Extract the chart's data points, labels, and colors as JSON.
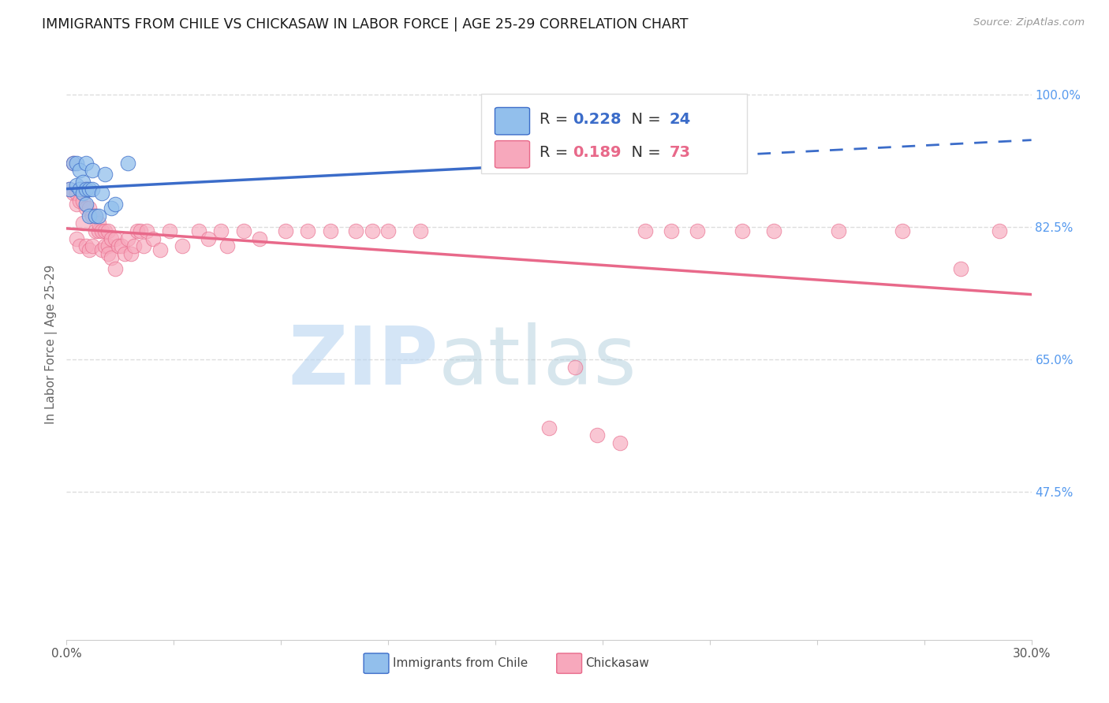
{
  "title": "IMMIGRANTS FROM CHILE VS CHICKASAW IN LABOR FORCE | AGE 25-29 CORRELATION CHART",
  "source": "Source: ZipAtlas.com",
  "ylabel": "In Labor Force | Age 25-29",
  "xlim": [
    0.0,
    0.3
  ],
  "ylim": [
    0.28,
    1.06
  ],
  "yticks_right": [
    1.0,
    0.825,
    0.65,
    0.475
  ],
  "ytick_right_labels": [
    "100.0%",
    "82.5%",
    "65.0%",
    "47.5%"
  ],
  "legend_r_blue": "0.228",
  "legend_n_blue": "24",
  "legend_r_pink": "0.189",
  "legend_n_pink": "73",
  "blue_color": "#92BFEC",
  "pink_color": "#F7A8BC",
  "line_blue_color": "#3B6CC9",
  "line_pink_color": "#E8698A",
  "background_color": "#FFFFFF",
  "grid_color": "#DDDDDD",
  "blue_x": [
    0.001,
    0.002,
    0.003,
    0.003,
    0.004,
    0.004,
    0.005,
    0.005,
    0.006,
    0.006,
    0.006,
    0.007,
    0.007,
    0.008,
    0.008,
    0.009,
    0.01,
    0.011,
    0.012,
    0.014,
    0.015,
    0.019,
    0.15,
    0.153
  ],
  "blue_y": [
    0.875,
    0.91,
    0.91,
    0.88,
    0.9,
    0.875,
    0.885,
    0.87,
    0.91,
    0.875,
    0.855,
    0.875,
    0.84,
    0.875,
    0.9,
    0.84,
    0.84,
    0.87,
    0.895,
    0.85,
    0.855,
    0.91,
    0.91,
    0.91
  ],
  "pink_x": [
    0.001,
    0.002,
    0.002,
    0.003,
    0.003,
    0.003,
    0.004,
    0.004,
    0.005,
    0.005,
    0.005,
    0.006,
    0.006,
    0.006,
    0.007,
    0.007,
    0.008,
    0.008,
    0.009,
    0.009,
    0.01,
    0.01,
    0.011,
    0.011,
    0.012,
    0.012,
    0.013,
    0.013,
    0.013,
    0.014,
    0.014,
    0.015,
    0.015,
    0.016,
    0.017,
    0.018,
    0.019,
    0.02,
    0.021,
    0.022,
    0.023,
    0.024,
    0.025,
    0.027,
    0.029,
    0.032,
    0.036,
    0.041,
    0.044,
    0.048,
    0.05,
    0.055,
    0.06,
    0.068,
    0.075,
    0.082,
    0.09,
    0.095,
    0.1,
    0.11,
    0.15,
    0.158,
    0.165,
    0.172,
    0.18,
    0.188,
    0.196,
    0.21,
    0.22,
    0.24,
    0.26,
    0.278,
    0.29
  ],
  "pink_y": [
    0.875,
    0.91,
    0.87,
    0.855,
    0.81,
    0.87,
    0.86,
    0.8,
    0.86,
    0.83,
    0.875,
    0.85,
    0.8,
    0.875,
    0.85,
    0.795,
    0.84,
    0.8,
    0.82,
    0.84,
    0.82,
    0.83,
    0.82,
    0.795,
    0.82,
    0.8,
    0.82,
    0.8,
    0.79,
    0.81,
    0.785,
    0.81,
    0.77,
    0.8,
    0.8,
    0.79,
    0.81,
    0.79,
    0.8,
    0.82,
    0.82,
    0.8,
    0.82,
    0.81,
    0.795,
    0.82,
    0.8,
    0.82,
    0.81,
    0.82,
    0.8,
    0.82,
    0.81,
    0.82,
    0.82,
    0.82,
    0.82,
    0.82,
    0.82,
    0.82,
    0.56,
    0.64,
    0.55,
    0.54,
    0.82,
    0.82,
    0.82,
    0.82,
    0.82,
    0.82,
    0.82,
    0.77,
    0.82
  ],
  "blue_line_x_start": 0.0,
  "blue_line_x_solid_end": 0.153,
  "blue_line_x_end": 0.3,
  "pink_line_x_start": 0.0,
  "pink_line_x_end": 0.3,
  "blue_trend_intercept": 0.866,
  "blue_trend_slope": 0.33,
  "pink_trend_intercept": 0.79,
  "pink_trend_slope": 0.27
}
